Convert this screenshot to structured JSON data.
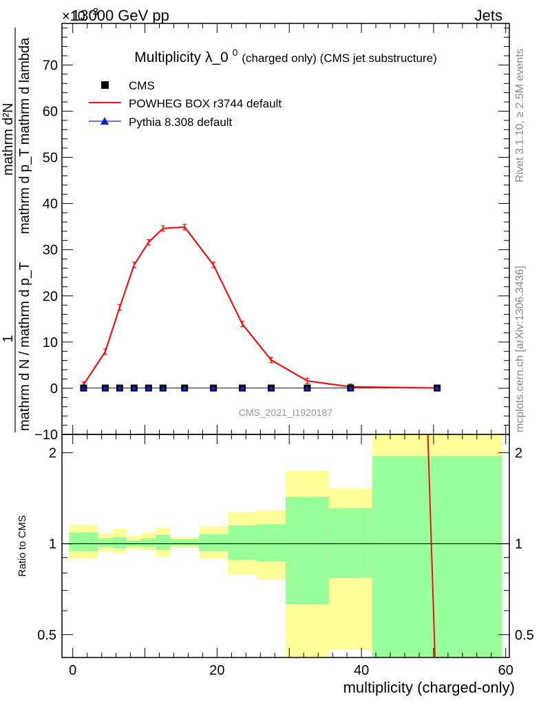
{
  "header": {
    "left": "13000 GeV pp",
    "right": "Jets",
    "exponent": "×10",
    "exponent_power": "-3"
  },
  "side_labels": {
    "rivet": "Rivet 3.1.10, ≥ 2.5M events",
    "mcplots": "mcplots.cern.ch [arXiv:1306.3436]"
  },
  "colors": {
    "cms": "#000000",
    "powheg": "#ee1111",
    "pythia": "#1122cc",
    "band_inner": "#99ff99",
    "band_outer": "#ffff99",
    "watermark": "#999999"
  },
  "chart_data": [
    {
      "type": "line",
      "title": "Multiplicity λ_0",
      "title_sup": "0",
      "subtitle": "(charged only) (CMS jet substructure)",
      "ylabel_numer": "1",
      "ylabel_denom": "mathrm d N / mathrm d p_T",
      "ylabel_right_numer": "mathrm d²N",
      "ylabel_right_denom": "mathrm d p_T mathrm d lambda",
      "watermark": "CMS_2021_I1920187",
      "xlim": [
        -1.5,
        60.5
      ],
      "ylim": [
        -10,
        79
      ],
      "yticks": [
        -10,
        0,
        10,
        20,
        30,
        40,
        50,
        60,
        70
      ],
      "legend_position": "top-left",
      "x": [
        1.5,
        4.5,
        6.5,
        8.5,
        10.5,
        12.5,
        15.5,
        19.5,
        23.5,
        27.5,
        32.5,
        38.5,
        50.5
      ],
      "series": [
        {
          "name": "CMS",
          "marker": "square",
          "values": [
            0.05,
            0.05,
            0.05,
            0.05,
            0.05,
            0.05,
            0.05,
            0.05,
            0.05,
            0.05,
            0.05,
            0.05,
            0.05
          ]
        },
        {
          "name": "POWHEG BOX r3744 default",
          "marker": "line",
          "values": [
            0.8,
            7.9,
            17.5,
            26.7,
            31.6,
            34.6,
            34.9,
            26.7,
            13.9,
            6.1,
            1.6,
            0.3,
            0.05
          ]
        },
        {
          "name": "Pythia 8.308 default",
          "marker": "triangle",
          "values": [
            0.05,
            0.05,
            0.05,
            0.05,
            0.05,
            0.05,
            0.05,
            0.05,
            0.05,
            0.05,
            0.05,
            0.05,
            0.05
          ]
        }
      ]
    },
    {
      "type": "area",
      "ylabel": "Ratio to CMS",
      "xlabel": "multiplicity (charged-only)",
      "xlim": [
        -1.5,
        60.5
      ],
      "ylim": [
        0.42,
        2.3
      ],
      "yscale": "log",
      "xticks": [
        0,
        20,
        40,
        60
      ],
      "yticks_labeled": [
        0.5,
        1,
        2
      ],
      "bins": [
        {
          "lo": -0.5,
          "hi": 3.5,
          "inner": [
            0.945,
            1.09
          ],
          "outer": [
            0.895,
            1.155
          ]
        },
        {
          "lo": 3.5,
          "hi": 5.5,
          "inner": [
            0.975,
            1.04
          ],
          "outer": [
            0.945,
            1.08
          ]
        },
        {
          "lo": 5.5,
          "hi": 7.5,
          "inner": [
            0.965,
            1.05
          ],
          "outer": [
            0.93,
            1.12
          ]
        },
        {
          "lo": 7.5,
          "hi": 9.5,
          "inner": [
            0.98,
            1.025
          ],
          "outer": [
            0.96,
            1.06
          ]
        },
        {
          "lo": 9.5,
          "hi": 11.5,
          "inner": [
            0.975,
            1.04
          ],
          "outer": [
            0.95,
            1.085
          ]
        },
        {
          "lo": 11.5,
          "hi": 13.5,
          "inner": [
            0.955,
            1.07
          ],
          "outer": [
            0.905,
            1.13
          ]
        },
        {
          "lo": 13.5,
          "hi": 17.5,
          "inner": [
            0.985,
            1.035
          ],
          "outer": [
            0.97,
            1.05
          ]
        },
        {
          "lo": 17.5,
          "hi": 21.5,
          "inner": [
            0.945,
            1.075
          ],
          "outer": [
            0.895,
            1.14
          ]
        },
        {
          "lo": 21.5,
          "hi": 25.5,
          "inner": [
            0.885,
            1.15
          ],
          "outer": [
            0.79,
            1.27
          ]
        },
        {
          "lo": 25.5,
          "hi": 29.5,
          "inner": [
            0.875,
            1.16
          ],
          "outer": [
            0.76,
            1.29
          ]
        },
        {
          "lo": 29.5,
          "hi": 35.5,
          "inner": [
            0.63,
            1.43
          ],
          "outer": [
            0.42,
            1.74
          ]
        },
        {
          "lo": 35.5,
          "hi": 41.5,
          "inner": [
            0.77,
            1.31
          ],
          "outer": [
            0.445,
            1.52
          ]
        },
        {
          "lo": 41.5,
          "hi": 59.5,
          "inner": [
            0.42,
            1.95
          ],
          "outer": [
            0.42,
            2.3
          ]
        }
      ],
      "powheg_line": {
        "x": [
          49.2,
          50.2
        ],
        "y": [
          2.3,
          0.42
        ]
      }
    }
  ]
}
